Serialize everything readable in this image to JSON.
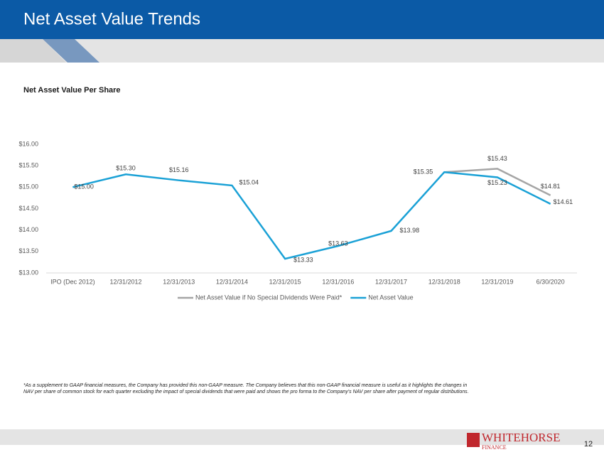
{
  "header": {
    "title": "Net Asset Value Trends"
  },
  "chart_data": {
    "type": "line",
    "title": "Net Asset  Value Per Share",
    "categories": [
      "IPO (Dec 2012)",
      "12/31/2012",
      "12/31/2013",
      "12/31/2014",
      "12/31/2015",
      "12/31/2016",
      "12/31/2017",
      "12/31/2018",
      "12/31/2019",
      "6/30/2020"
    ],
    "series": [
      {
        "name": "Net Asset Value if No Special Dividends Were Paid*",
        "color": "#a5a5a5",
        "values": [
          null,
          null,
          null,
          null,
          null,
          null,
          null,
          15.35,
          15.43,
          14.81
        ],
        "value_labels": [
          null,
          null,
          null,
          null,
          null,
          null,
          null,
          null,
          "$15.43",
          "$14.81"
        ]
      },
      {
        "name": "Net Asset Value",
        "color": "#1aa1d6",
        "values": [
          15.0,
          15.3,
          15.16,
          15.04,
          13.33,
          13.63,
          13.98,
          15.35,
          15.23,
          14.61
        ],
        "value_labels": [
          "$15.00",
          "$15.30",
          "$15.16",
          "$15.04",
          "$13.33",
          "$13.63",
          "$13.98",
          "$15.35",
          "$15.23",
          "$14.61"
        ]
      }
    ],
    "ylim": [
      13,
      16
    ],
    "yticks": [
      {
        "value": 13,
        "label": "$13.00"
      },
      {
        "value": 13.5,
        "label": "$13.50"
      },
      {
        "value": 14,
        "label": "$14.00"
      },
      {
        "value": 14.5,
        "label": "$14.50"
      },
      {
        "value": 15,
        "label": "$15.00"
      },
      {
        "value": 15.5,
        "label": "$15.50"
      },
      {
        "value": 16,
        "label": "$16.00"
      }
    ],
    "grid": false,
    "legend": "bottom"
  },
  "footnote": "*As a supplement to GAAP financial measures, the Company has provided this non-GAAP measure. The Company believes that this non-GAAP financial measure is useful as it highlights the changes in NAV per share of common stock for each quarter excluding the impact of special dividends that were paid and shows the pro forma to the Company's NAV per share after payment of regular distributions.",
  "footer": {
    "logo": "WHITEHORSE",
    "logo_sub": "FINANCE",
    "page": "12"
  }
}
